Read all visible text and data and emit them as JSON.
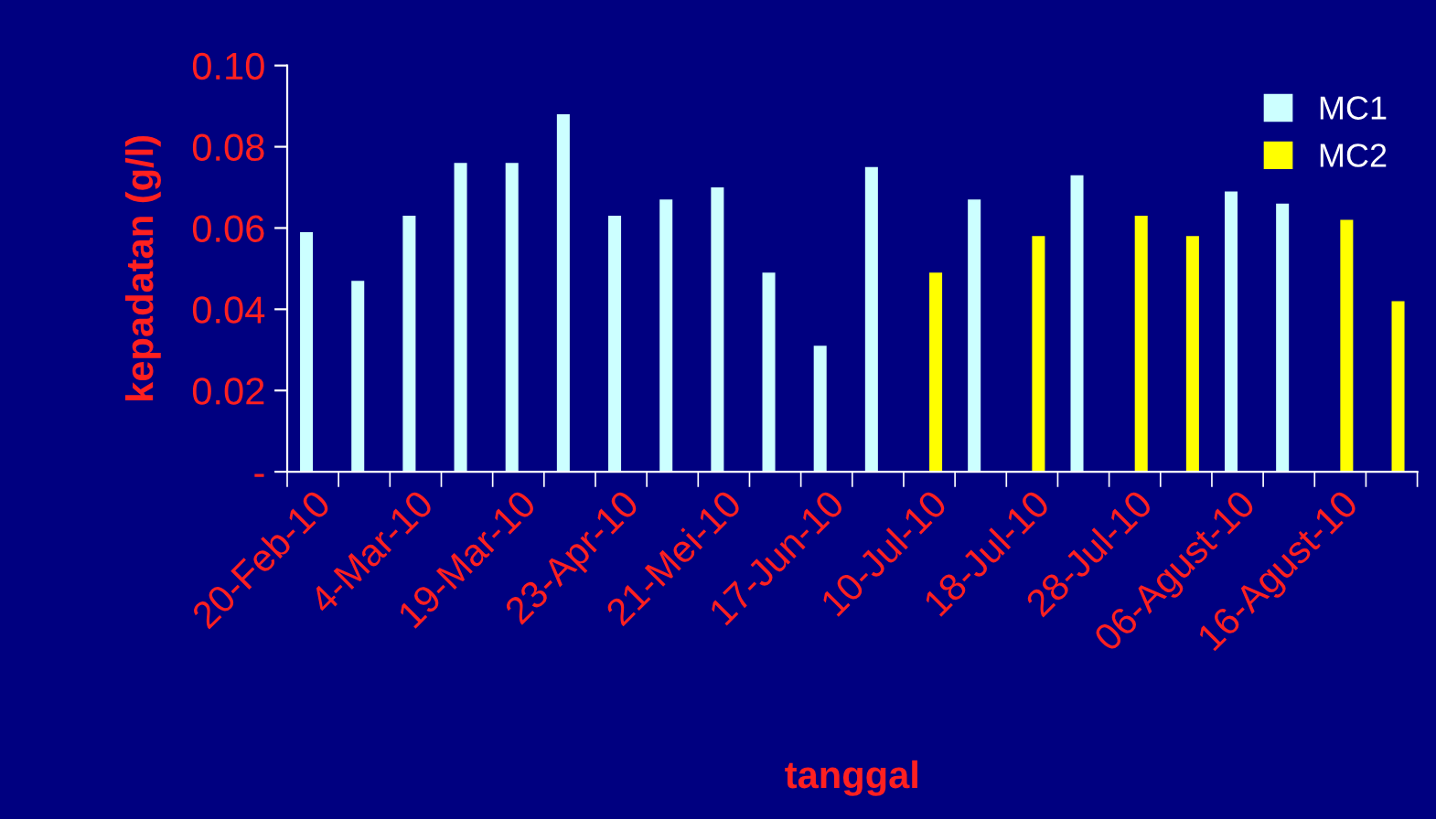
{
  "chart_data": {
    "type": "bar",
    "xlabel": "tanggal",
    "ylabel": "kepadatan (g/l)",
    "categories": [
      "20-Feb-10",
      null,
      "4-Mar-10",
      null,
      "19-Mar-10",
      null,
      "23-Apr-10",
      null,
      "21-Mei-10",
      null,
      "17-Jun-10",
      null,
      "10-Jul-10",
      null,
      "18-Jul-10",
      null,
      "28-Jul-10",
      null,
      "06-Agust-10",
      null,
      "16-Agust-10",
      null
    ],
    "series": [
      {
        "name": "MC1",
        "color": "#ccffff",
        "values": [
          0.059,
          0.047,
          0.063,
          0.076,
          0.076,
          0.088,
          0.063,
          0.067,
          0.07,
          0.049,
          0.031,
          0.075,
          null,
          0.067,
          null,
          0.073,
          null,
          null,
          0.069,
          0.066,
          null,
          null
        ]
      },
      {
        "name": "MC2",
        "color": "#ffff00",
        "values": [
          null,
          null,
          null,
          null,
          null,
          null,
          null,
          null,
          null,
          null,
          null,
          null,
          0.049,
          null,
          0.058,
          null,
          0.063,
          0.058,
          null,
          null,
          0.062,
          0.042
        ]
      }
    ],
    "ylim": [
      0,
      0.1
    ],
    "yticks": [
      {
        "value": 0,
        "label": "-"
      },
      0.02,
      0.04,
      0.06,
      0.08,
      {
        "value": 0.1,
        "label": "0.10"
      }
    ],
    "grid": false,
    "legend": "top right"
  }
}
